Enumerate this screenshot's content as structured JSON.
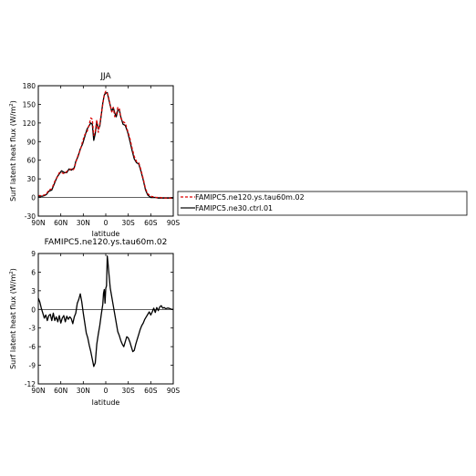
{
  "chart_data": [
    {
      "type": "line",
      "title": "JJA",
      "xlabel": "latitude",
      "ylabel": "Surf latent heat flux (W/m",
      "ylabel_sup": "2",
      "ylabel_close": ")",
      "xlim": [
        90,
        -90
      ],
      "ylim": [
        -30,
        180
      ],
      "xticks": [
        90,
        60,
        30,
        0,
        -30,
        -60,
        -90
      ],
      "xtick_labels": [
        "90N",
        "60N",
        "30N",
        "0",
        "30S",
        "60S",
        "90S"
      ],
      "yticks": [
        -30,
        0,
        30,
        60,
        90,
        120,
        150,
        180
      ],
      "ytick_labels": [
        "-30",
        "0",
        "30",
        "60",
        "90",
        "120",
        "150",
        "180"
      ],
      "legend": "right",
      "series": [
        {
          "name": "FAMIPC5.ne120.ys.tau60m.02",
          "color": "#dd0000",
          "dash": "dashed",
          "x": [
            90,
            85,
            82,
            79,
            76,
            72,
            68,
            65,
            62,
            59,
            55,
            52,
            49,
            46,
            44,
            42,
            40,
            37,
            34,
            31,
            28,
            25,
            22,
            20,
            18,
            16,
            14,
            12,
            10,
            8,
            6,
            4,
            2,
            0,
            -2,
            -4,
            -6,
            -8,
            -10,
            -12,
            -14,
            -16,
            -18,
            -20,
            -23,
            -26,
            -29,
            -32,
            -35,
            -38,
            -41,
            -44,
            -47,
            -50,
            -53,
            -56,
            -60,
            -64,
            -67,
            -70,
            -73,
            -76,
            -80,
            -85,
            -90
          ],
          "y": [
            3,
            3,
            4,
            6,
            12,
            14,
            26,
            32,
            40,
            40,
            38,
            42,
            44,
            46,
            44,
            47,
            56,
            68,
            76,
            90,
            101,
            106,
            118,
            128,
            126,
            100,
            106,
            125,
            105,
            118,
            134,
            150,
            166,
            171,
            168,
            160,
            148,
            138,
            145,
            130,
            133,
            145,
            144,
            128,
            122,
            120,
            108,
            96,
            80,
            66,
            58,
            56,
            44,
            30,
            14,
            6,
            2,
            1,
            0,
            0,
            0,
            -1,
            -1,
            -1,
            -1
          ]
        },
        {
          "name": "FAMIPC5.ne30.ctrl.01",
          "color": "#000000",
          "dash": "solid",
          "x": [
            90,
            85,
            82,
            79,
            76,
            72,
            68,
            65,
            62,
            59,
            55,
            52,
            49,
            46,
            44,
            42,
            40,
            37,
            34,
            31,
            28,
            25,
            22,
            20,
            18,
            16,
            14,
            12,
            10,
            8,
            6,
            4,
            2,
            0,
            -2,
            -4,
            -6,
            -8,
            -10,
            -12,
            -14,
            -16,
            -18,
            -20,
            -23,
            -26,
            -29,
            -32,
            -35,
            -38,
            -41,
            -44,
            -47,
            -50,
            -53,
            -56,
            -60,
            -64,
            -67,
            -70,
            -73,
            -76,
            -80,
            -85,
            -90
          ],
          "y": [
            2,
            2,
            3,
            5,
            10,
            12,
            24,
            33,
            38,
            43,
            40,
            40,
            46,
            44,
            46,
            48,
            58,
            66,
            78,
            86,
            98,
            110,
            116,
            120,
            118,
            92,
            103,
            122,
            110,
            115,
            133,
            152,
            165,
            168,
            169,
            158,
            148,
            138,
            145,
            136,
            130,
            140,
            142,
            130,
            118,
            116,
            106,
            92,
            76,
            62,
            56,
            54,
            42,
            28,
            12,
            4,
            0,
            0,
            0,
            -1,
            -1,
            -1,
            -1,
            -1,
            -1
          ]
        }
      ]
    },
    {
      "type": "line",
      "title": "FAMIPC5.ne120.ys.tau60m.02",
      "xlabel": "latitude",
      "ylabel": "Surf latent heat flux (W/m",
      "ylabel_sup": "2",
      "ylabel_close": ")",
      "xlim": [
        90,
        -90
      ],
      "ylim": [
        -12,
        9
      ],
      "xticks": [
        90,
        60,
        30,
        0,
        -30,
        -60,
        -90
      ],
      "xtick_labels": [
        "90N",
        "60N",
        "30N",
        "0",
        "30S",
        "60S",
        "90S"
      ],
      "yticks": [
        -12,
        -9,
        -6,
        -3,
        0,
        3,
        6,
        9
      ],
      "ytick_labels": [
        "-12",
        "-9",
        "-6",
        "-3",
        "0",
        "3",
        "6",
        "9"
      ],
      "series": [
        {
          "color": "#000000",
          "dash": "solid",
          "x": [
            90,
            88,
            86,
            84,
            82,
            80,
            78,
            76,
            74,
            72,
            70,
            68,
            66,
            64,
            62,
            60,
            58,
            56,
            54,
            52,
            50,
            48,
            46,
            44,
            42,
            40,
            38,
            36,
            34,
            32,
            30,
            28,
            26,
            24,
            22,
            20,
            18,
            16,
            14,
            12,
            10,
            8,
            6,
            4,
            3,
            2,
            1,
            0,
            -1,
            -2,
            -3,
            -4,
            -6,
            -8,
            -10,
            -12,
            -14,
            -16,
            -18,
            -20,
            -22,
            -24,
            -26,
            -28,
            -30,
            -32,
            -34,
            -36,
            -38,
            -40,
            -42,
            -44,
            -46,
            -48,
            -50,
            -52,
            -54,
            -56,
            -58,
            -60,
            -62,
            -64,
            -66,
            -68,
            -70,
            -72,
            -74,
            -76,
            -78,
            -80,
            -82,
            -84,
            -86,
            -88,
            -90
          ],
          "y": [
            1.8,
            1.2,
            0.2,
            -0.6,
            -1.4,
            -0.9,
            -1.8,
            -1.0,
            -0.8,
            -1.8,
            -0.6,
            -1.8,
            -1.2,
            -2.0,
            -1.0,
            -2.2,
            -1.4,
            -1.0,
            -2.0,
            -1.1,
            -1.6,
            -1.2,
            -1.5,
            -2.3,
            -1.2,
            -0.6,
            1.0,
            1.6,
            2.5,
            1.2,
            -0.6,
            -2.2,
            -3.8,
            -4.6,
            -5.8,
            -6.8,
            -8.0,
            -9.2,
            -8.6,
            -5.6,
            -4.0,
            -2.6,
            -0.8,
            0.8,
            2.6,
            3.2,
            1.0,
            3.4,
            3.8,
            8.6,
            7.4,
            6.0,
            3.4,
            2.0,
            0.6,
            -0.8,
            -2.2,
            -3.6,
            -4.2,
            -5.0,
            -5.6,
            -6.0,
            -5.2,
            -4.4,
            -4.6,
            -5.2,
            -6.0,
            -6.8,
            -6.6,
            -5.6,
            -4.8,
            -4.0,
            -3.2,
            -2.6,
            -2.2,
            -1.6,
            -1.2,
            -0.8,
            -0.4,
            -0.9,
            -0.4,
            0.2,
            -0.5,
            0.3,
            -0.2,
            0.4,
            0.6,
            0.2,
            0.3,
            0.1,
            0.2,
            0.2,
            0.1,
            0.0,
            0.0
          ]
        }
      ]
    }
  ]
}
